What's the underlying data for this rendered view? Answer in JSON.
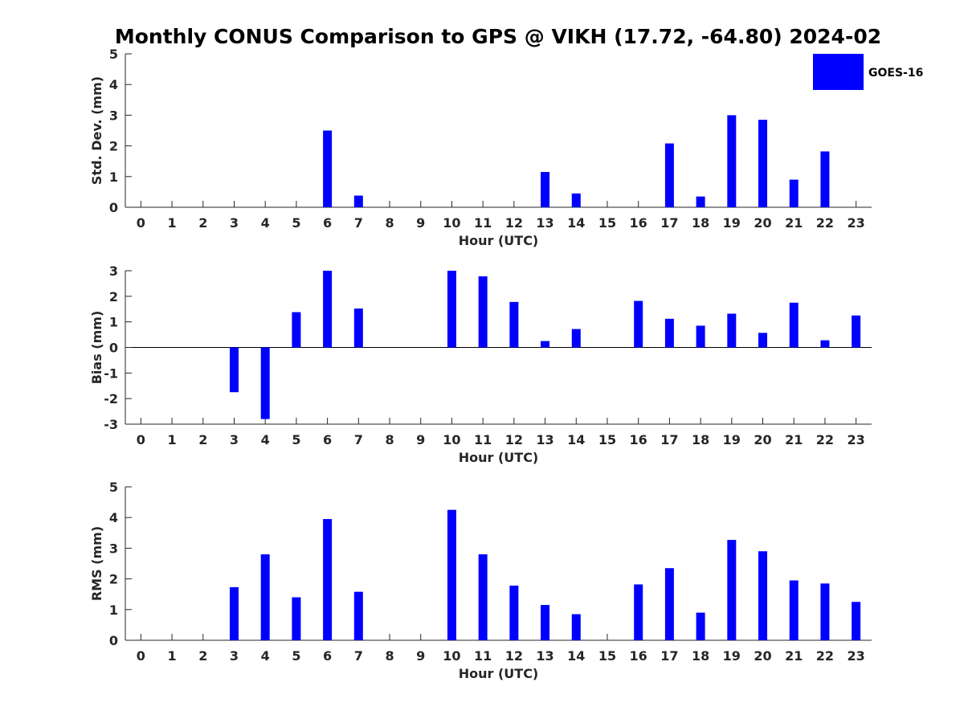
{
  "title": "Monthly CONUS Comparison to GPS @ VIKH (17.72, -64.80) 2024-02",
  "colors": {
    "bar": "#0000ff",
    "axis": "#262626"
  },
  "legend": {
    "label": "GOES-16",
    "position": "top-right"
  },
  "chart_data": [
    {
      "type": "bar",
      "xlabel": "Hour (UTC)",
      "ylabel": "Std. Dev. (mm)",
      "ylim": [
        0,
        5
      ],
      "yticks": [
        0,
        1,
        2,
        3,
        4,
        5
      ],
      "x": [
        0,
        1,
        2,
        3,
        4,
        5,
        6,
        7,
        8,
        9,
        10,
        11,
        12,
        13,
        14,
        15,
        16,
        17,
        18,
        19,
        20,
        21,
        22,
        23
      ],
      "series": [
        {
          "name": "GOES-16",
          "values": [
            null,
            null,
            null,
            null,
            null,
            null,
            2.5,
            0.38,
            null,
            null,
            null,
            null,
            null,
            1.15,
            0.45,
            null,
            null,
            2.08,
            0.35,
            3.0,
            2.85,
            0.9,
            1.82,
            null
          ]
        }
      ]
    },
    {
      "type": "bar",
      "xlabel": "Hour (UTC)",
      "ylabel": "Bias (mm)",
      "ylim": [
        -3,
        3
      ],
      "yticks": [
        -3,
        -2,
        -1,
        0,
        1,
        2,
        3
      ],
      "x": [
        0,
        1,
        2,
        3,
        4,
        5,
        6,
        7,
        8,
        9,
        10,
        11,
        12,
        13,
        14,
        15,
        16,
        17,
        18,
        19,
        20,
        21,
        22,
        23
      ],
      "series": [
        {
          "name": "GOES-16",
          "values": [
            null,
            null,
            null,
            -1.75,
            -2.8,
            1.38,
            3.0,
            1.52,
            null,
            null,
            3.0,
            2.78,
            1.78,
            0.25,
            0.72,
            null,
            1.82,
            1.12,
            0.85,
            1.32,
            0.57,
            1.75,
            0.28,
            1.25
          ]
        }
      ]
    },
    {
      "type": "bar",
      "xlabel": "Hour (UTC)",
      "ylabel": "RMS (mm)",
      "ylim": [
        0,
        5
      ],
      "yticks": [
        0,
        1,
        2,
        3,
        4,
        5
      ],
      "x": [
        0,
        1,
        2,
        3,
        4,
        5,
        6,
        7,
        8,
        9,
        10,
        11,
        12,
        13,
        14,
        15,
        16,
        17,
        18,
        19,
        20,
        21,
        22,
        23
      ],
      "series": [
        {
          "name": "GOES-16",
          "values": [
            null,
            null,
            null,
            1.73,
            2.8,
            1.4,
            3.95,
            1.58,
            null,
            null,
            4.25,
            2.8,
            1.78,
            1.15,
            0.85,
            null,
            1.82,
            2.35,
            0.9,
            3.27,
            2.9,
            1.95,
            1.85,
            1.25
          ]
        }
      ]
    }
  ]
}
